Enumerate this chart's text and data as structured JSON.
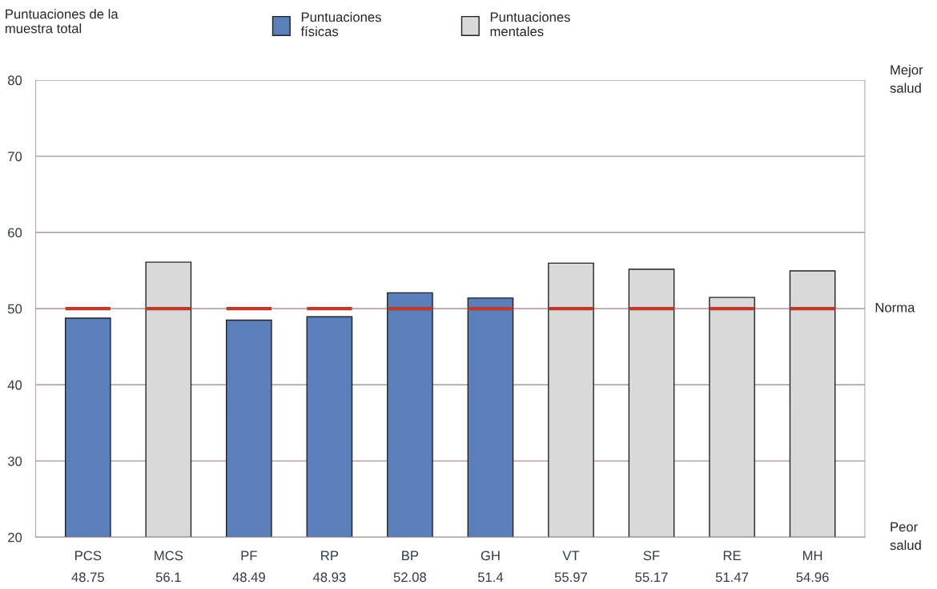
{
  "chart_data": {
    "type": "bar",
    "title": "Puntuaciones de la muestra total",
    "categories": [
      "PCS",
      "MCS",
      "PF",
      "RP",
      "BP",
      "GH",
      "VT",
      "SF",
      "RE",
      "MH"
    ],
    "series": [
      {
        "name": "Puntuaciones físicas",
        "color": "#5a7fba",
        "values": [
          48.75,
          null,
          48.49,
          48.93,
          52.08,
          51.4,
          null,
          null,
          null,
          null
        ]
      },
      {
        "name": "Puntuaciones mentales",
        "color": "#d9d9d9",
        "values": [
          null,
          56.1,
          null,
          null,
          null,
          null,
          55.97,
          55.17,
          51.47,
          54.96
        ]
      }
    ],
    "ylim": [
      20,
      80
    ],
    "yticks": [
      20,
      30,
      40,
      50,
      60,
      70,
      80
    ],
    "annotations": [
      "Mejor\nsalud",
      "Peor\nsalud"
    ],
    "ref_lines": [
      {
        "axis": "y",
        "value": 50,
        "label": "Norma",
        "color": "#c0392b"
      }
    ],
    "grid": "y",
    "legend": "top",
    "data_labels": true
  }
}
